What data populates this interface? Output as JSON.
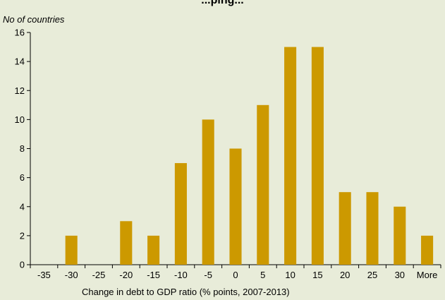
{
  "chart_data": {
    "type": "bar",
    "title": "...ping...",
    "ylabel": "No of countries",
    "xlabel": "Change in debt to GDP ratio (% points, 2007-2013)",
    "categories": [
      "-35",
      "-30",
      "-25",
      "-20",
      "-15",
      "-10",
      "-5",
      "0",
      "5",
      "10",
      "15",
      "20",
      "25",
      "30",
      "More"
    ],
    "values": [
      0,
      2,
      0,
      3,
      2,
      7,
      10,
      8,
      11,
      15,
      15,
      5,
      5,
      4,
      2
    ],
    "ylim": [
      0,
      16
    ],
    "yticks": [
      0,
      2,
      4,
      6,
      8,
      10,
      12,
      14,
      16
    ],
    "grid": false,
    "bar_color": "#cc9900"
  }
}
